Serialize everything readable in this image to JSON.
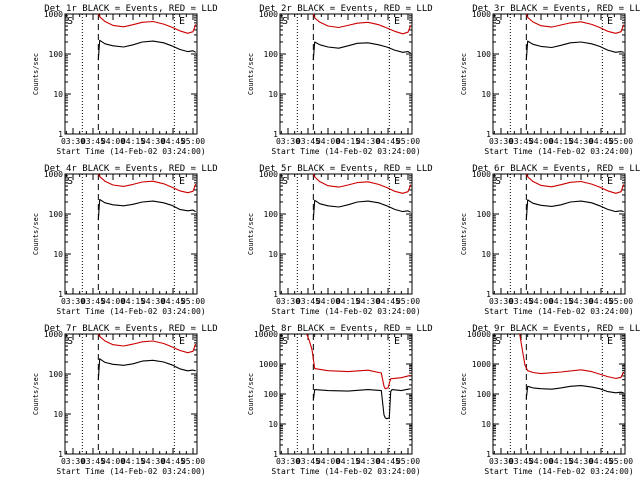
{
  "figure": {
    "time_ticks": [
      "03:30",
      "03:45",
      "04:00",
      "04:15",
      "04:30",
      "04:45",
      "05:00"
    ],
    "x_axis_label": "Start Time (14-Feb-02 03:24:00)",
    "y_axis_label": "Counts/sec",
    "marker_S": "S",
    "marker_E": "E"
  },
  "chart_data": [
    {
      "type": "line",
      "title": "Det 1r BLACK = Events, RED = LLD",
      "xlabel": "Start Time (14-Feb-02 03:24:00)",
      "ylabel": "Counts/sec",
      "yscale": "log",
      "yticks": [
        1,
        10,
        100,
        1000
      ],
      "ylim": [
        1,
        1000
      ],
      "xlim": [
        "03:24",
        "05:03"
      ],
      "x_ticks": [
        "03:30",
        "03:45",
        "04:00",
        "04:15",
        "04:30",
        "04:45",
        "05:00"
      ],
      "legend": "none",
      "grid": false,
      "dotted_lines_x": [
        "03:37",
        "04:46"
      ],
      "dashed_line_x": "03:49",
      "markers": {
        "S": "03:24",
        "E": "04:48"
      },
      "series": [
        {
          "color": "#000000",
          "x": [
            "03:49",
            "03:50",
            "03:54",
            "04:00",
            "04:08",
            "04:15",
            "04:22",
            "04:30",
            "04:38",
            "04:44",
            "04:50",
            "04:56",
            "05:00",
            "05:02"
          ],
          "y": [
            70,
            220,
            180,
            160,
            150,
            170,
            200,
            210,
            190,
            160,
            130,
            115,
            120,
            110
          ]
        },
        {
          "color": "#cc0000",
          "x": [
            "03:49",
            "03:50",
            "03:54",
            "04:00",
            "04:08",
            "04:15",
            "04:22",
            "04:30",
            "04:38",
            "04:44",
            "04:50",
            "04:56",
            "05:00",
            "05:02"
          ],
          "y": [
            1000,
            850,
            650,
            520,
            480,
            540,
            620,
            650,
            560,
            470,
            380,
            330,
            360,
            550
          ]
        }
      ]
    },
    {
      "type": "line",
      "title": "Det 2r BLACK = Events, RED = LLD",
      "xlabel": "Start Time (14-Feb-02 03:24:00)",
      "ylabel": "Counts/sec",
      "yscale": "log",
      "yticks": [
        1,
        10,
        100,
        1000
      ],
      "ylim": [
        1,
        1000
      ],
      "xlim": [
        "03:24",
        "05:03"
      ],
      "x_ticks": [
        "03:30",
        "03:45",
        "04:00",
        "04:15",
        "04:30",
        "04:45",
        "05:00"
      ],
      "legend": "none",
      "grid": false,
      "dotted_lines_x": [
        "03:37",
        "04:46"
      ],
      "dashed_line_x": "03:49",
      "markers": {
        "S": "03:24",
        "E": "04:48"
      },
      "series": [
        {
          "color": "#000000",
          "x": [
            "03:49",
            "03:50",
            "03:54",
            "04:00",
            "04:08",
            "04:15",
            "04:22",
            "04:30",
            "04:38",
            "04:44",
            "04:50",
            "04:56",
            "05:00",
            "05:02"
          ],
          "y": [
            70,
            200,
            170,
            150,
            140,
            160,
            185,
            190,
            170,
            150,
            125,
            110,
            115,
            105
          ]
        },
        {
          "color": "#cc0000",
          "x": [
            "03:49",
            "03:50",
            "03:54",
            "04:00",
            "04:08",
            "04:15",
            "04:22",
            "04:30",
            "04:38",
            "04:44",
            "04:50",
            "04:56",
            "05:00",
            "05:02"
          ],
          "y": [
            1000,
            800,
            620,
            500,
            460,
            520,
            590,
            620,
            540,
            450,
            370,
            320,
            350,
            520
          ]
        }
      ]
    },
    {
      "type": "line",
      "title": "Det 3r BLACK = Events, RED = LLD",
      "xlabel": "Start Time (14-Feb-02 03:24:00)",
      "ylabel": "Counts/sec",
      "yscale": "log",
      "yticks": [
        1,
        10,
        100,
        1000
      ],
      "ylim": [
        1,
        1000
      ],
      "xlim": [
        "03:24",
        "05:03"
      ],
      "x_ticks": [
        "03:30",
        "03:45",
        "04:00",
        "04:15",
        "04:30",
        "04:45",
        "05:00"
      ],
      "legend": "none",
      "grid": false,
      "dotted_lines_x": [
        "03:37",
        "04:46"
      ],
      "dashed_line_x": "03:49",
      "markers": {
        "S": "03:24",
        "E": "04:48"
      },
      "series": [
        {
          "color": "#000000",
          "x": [
            "03:49",
            "03:50",
            "03:54",
            "04:00",
            "04:08",
            "04:15",
            "04:22",
            "04:30",
            "04:38",
            "04:44",
            "04:50",
            "04:56",
            "05:00",
            "05:02"
          ],
          "y": [
            70,
            210,
            175,
            155,
            145,
            165,
            190,
            200,
            180,
            155,
            125,
            110,
            115,
            110
          ]
        },
        {
          "color": "#cc0000",
          "x": [
            "03:49",
            "03:50",
            "03:54",
            "04:00",
            "04:08",
            "04:15",
            "04:22",
            "04:30",
            "04:38",
            "04:44",
            "04:50",
            "04:56",
            "05:00",
            "05:02"
          ],
          "y": [
            1000,
            820,
            630,
            510,
            470,
            530,
            600,
            640,
            550,
            460,
            370,
            330,
            360,
            540
          ]
        }
      ]
    },
    {
      "type": "line",
      "title": "Det 4r BLACK = Events, RED = LLD",
      "xlabel": "Start Time (14-Feb-02 03:24:00)",
      "ylabel": "Counts/sec",
      "yscale": "log",
      "yticks": [
        1,
        10,
        100,
        1000
      ],
      "ylim": [
        1,
        1000
      ],
      "xlim": [
        "03:24",
        "05:03"
      ],
      "x_ticks": [
        "03:30",
        "03:45",
        "04:00",
        "04:15",
        "04:30",
        "04:45",
        "05:00"
      ],
      "legend": "none",
      "grid": false,
      "dotted_lines_x": [
        "03:37",
        "04:46"
      ],
      "dashed_line_x": "03:49",
      "markers": {
        "S": "03:24",
        "E": "04:48"
      },
      "series": [
        {
          "color": "#000000",
          "x": [
            "03:49",
            "03:50",
            "03:54",
            "04:00",
            "04:08",
            "04:15",
            "04:22",
            "04:30",
            "04:38",
            "04:44",
            "04:50",
            "04:56",
            "05:00",
            "05:02"
          ],
          "y": [
            70,
            230,
            190,
            170,
            160,
            175,
            200,
            210,
            190,
            165,
            130,
            120,
            125,
            115
          ]
        },
        {
          "color": "#cc0000",
          "x": [
            "03:49",
            "03:50",
            "03:54",
            "04:00",
            "04:08",
            "04:15",
            "04:22",
            "04:30",
            "04:38",
            "04:44",
            "04:50",
            "04:56",
            "05:00",
            "05:02"
          ],
          "y": [
            1000,
            860,
            660,
            530,
            490,
            550,
            630,
            660,
            570,
            470,
            380,
            340,
            370,
            560
          ]
        }
      ]
    },
    {
      "type": "line",
      "title": "Det 5r BLACK = Events, RED = LLD",
      "xlabel": "Start Time (14-Feb-02 03:24:00)",
      "ylabel": "Counts/sec",
      "yscale": "log",
      "yticks": [
        1,
        10,
        100,
        1000
      ],
      "ylim": [
        1,
        1000
      ],
      "xlim": [
        "03:24",
        "05:03"
      ],
      "x_ticks": [
        "03:30",
        "03:45",
        "04:00",
        "04:15",
        "04:30",
        "04:45",
        "05:00"
      ],
      "legend": "none",
      "grid": false,
      "dotted_lines_x": [
        "03:37",
        "04:46"
      ],
      "dashed_line_x": "03:49",
      "markers": {
        "S": "03:24",
        "E": "04:48"
      },
      "series": [
        {
          "color": "#000000",
          "x": [
            "03:49",
            "03:50",
            "03:54",
            "04:00",
            "04:08",
            "04:15",
            "04:22",
            "04:30",
            "04:38",
            "04:44",
            "04:50",
            "04:56",
            "05:00",
            "05:02"
          ],
          "y": [
            70,
            220,
            180,
            160,
            150,
            170,
            200,
            210,
            190,
            160,
            130,
            115,
            120,
            110
          ]
        },
        {
          "color": "#cc0000",
          "x": [
            "03:49",
            "03:50",
            "03:54",
            "04:00",
            "04:08",
            "04:15",
            "04:22",
            "04:30",
            "04:38",
            "04:44",
            "04:50",
            "04:56",
            "05:00",
            "05:02"
          ],
          "y": [
            1000,
            840,
            640,
            510,
            470,
            530,
            610,
            640,
            550,
            460,
            370,
            330,
            360,
            540
          ]
        }
      ]
    },
    {
      "type": "line",
      "title": "Det 6r BLACK = Events, RED = LLD",
      "xlabel": "Start Time (14-Feb-02 03:24:00)",
      "ylabel": "Counts/sec",
      "yscale": "log",
      "yticks": [
        1,
        10,
        100,
        1000
      ],
      "ylim": [
        1,
        1000
      ],
      "xlim": [
        "03:24",
        "05:03"
      ],
      "x_ticks": [
        "03:30",
        "03:45",
        "04:00",
        "04:15",
        "04:30",
        "04:45",
        "05:00"
      ],
      "legend": "none",
      "grid": false,
      "dotted_lines_x": [
        "03:37",
        "04:46"
      ],
      "dashed_line_x": "03:49",
      "markers": {
        "S": "03:24",
        "E": "04:48"
      },
      "series": [
        {
          "color": "#000000",
          "x": [
            "03:49",
            "03:50",
            "03:54",
            "04:00",
            "04:08",
            "04:15",
            "04:22",
            "04:30",
            "04:38",
            "04:44",
            "04:50",
            "04:56",
            "05:00",
            "05:02"
          ],
          "y": [
            70,
            225,
            185,
            165,
            155,
            170,
            200,
            210,
            190,
            160,
            130,
            115,
            120,
            115
          ]
        },
        {
          "color": "#cc0000",
          "x": [
            "03:49",
            "03:50",
            "03:54",
            "04:00",
            "04:08",
            "04:15",
            "04:22",
            "04:30",
            "04:38",
            "04:44",
            "04:50",
            "04:56",
            "05:00",
            "05:02"
          ],
          "y": [
            1000,
            850,
            650,
            520,
            480,
            540,
            620,
            650,
            560,
            470,
            380,
            330,
            360,
            550
          ]
        }
      ]
    },
    {
      "type": "line",
      "title": "Det 7r BLACK = Events, RED = LLD",
      "xlabel": "Start Time (14-Feb-02 03:24:00)",
      "ylabel": "Counts/sec",
      "yscale": "log",
      "yticks": [
        1,
        10,
        100,
        1000
      ],
      "ylim": [
        1,
        1000
      ],
      "xlim": [
        "03:24",
        "05:03"
      ],
      "x_ticks": [
        "03:30",
        "03:45",
        "04:00",
        "04:15",
        "04:30",
        "04:45",
        "05:00"
      ],
      "legend": "none",
      "grid": false,
      "dotted_lines_x": [
        "03:37",
        "04:46"
      ],
      "dashed_line_x": "03:49",
      "markers": {
        "S": "03:24",
        "E": "04:48"
      },
      "series": [
        {
          "color": "#000000",
          "x": [
            "03:49",
            "03:50",
            "03:54",
            "04:00",
            "04:08",
            "04:15",
            "04:22",
            "04:30",
            "04:38",
            "04:44",
            "04:50",
            "04:56",
            "05:00",
            "05:02"
          ],
          "y": [
            70,
            240,
            195,
            175,
            165,
            180,
            210,
            220,
            200,
            170,
            135,
            120,
            125,
            120
          ]
        },
        {
          "color": "#cc0000",
          "x": [
            "03:49",
            "03:50",
            "03:54",
            "04:00",
            "04:08",
            "04:15",
            "04:22",
            "04:30",
            "04:38",
            "04:44",
            "04:50",
            "04:56",
            "05:00",
            "05:02"
          ],
          "y": [
            1000,
            870,
            670,
            540,
            500,
            560,
            640,
            670,
            580,
            480,
            390,
            340,
            370,
            570
          ]
        }
      ]
    },
    {
      "type": "line",
      "title": "Det 8r BLACK = Events, RED = LLD",
      "xlabel": "Start Time (14-Feb-02 03:24:00)",
      "ylabel": "Counts/sec",
      "yscale": "log",
      "yticks": [
        1,
        10,
        100,
        1000,
        10000
      ],
      "ylim": [
        1,
        10000
      ],
      "xlim": [
        "03:24",
        "05:03"
      ],
      "x_ticks": [
        "03:30",
        "03:45",
        "04:00",
        "04:15",
        "04:30",
        "04:45",
        "05:00"
      ],
      "legend": "none",
      "grid": false,
      "dotted_lines_x": [
        "03:37",
        "04:46"
      ],
      "dashed_line_x": "03:49",
      "markers": {
        "S": "03:24",
        "E": "04:48"
      },
      "series": [
        {
          "color": "#000000",
          "x": [
            "03:49",
            "03:50",
            "04:00",
            "04:15",
            "04:30",
            "04:40",
            "04:42",
            "04:43",
            "04:44",
            "04:46",
            "04:47",
            "04:48",
            "04:55",
            "05:02"
          ],
          "y": [
            60,
            140,
            130,
            125,
            140,
            130,
            20,
            16,
            15,
            16,
            120,
            140,
            130,
            150
          ]
        },
        {
          "color": "#cc0000",
          "x": [
            "03:44",
            "03:46",
            "03:48",
            "03:50",
            "04:00",
            "04:15",
            "04:30",
            "04:40",
            "04:42",
            "04:43",
            "04:45",
            "04:47",
            "04:55",
            "05:02"
          ],
          "y": [
            10000,
            6000,
            3000,
            700,
            600,
            560,
            620,
            500,
            180,
            150,
            160,
            320,
            350,
            420
          ]
        }
      ]
    },
    {
      "type": "line",
      "title": "Det 9r BLACK = Events, RED = LLD",
      "xlabel": "Start Time (14-Feb-02 03:24:00)",
      "ylabel": "Counts/sec",
      "yscale": "log",
      "yticks": [
        1,
        10,
        100,
        1000,
        10000
      ],
      "ylim": [
        1,
        10000
      ],
      "xlim": [
        "03:24",
        "05:03"
      ],
      "x_ticks": [
        "03:30",
        "03:45",
        "04:00",
        "04:15",
        "04:30",
        "04:45",
        "05:00"
      ],
      "legend": "none",
      "grid": false,
      "dotted_lines_x": [
        "03:37",
        "04:46"
      ],
      "dashed_line_x": "03:49",
      "markers": {
        "S": "03:24",
        "E": "04:48"
      },
      "series": [
        {
          "color": "#000000",
          "x": [
            "03:49",
            "03:50",
            "03:54",
            "04:00",
            "04:08",
            "04:15",
            "04:22",
            "04:30",
            "04:38",
            "04:44",
            "04:50",
            "04:56",
            "05:00",
            "05:02"
          ],
          "y": [
            70,
            180,
            160,
            150,
            145,
            160,
            180,
            190,
            170,
            150,
            120,
            110,
            115,
            110
          ]
        },
        {
          "color": "#cc0000",
          "x": [
            "03:44",
            "03:46",
            "03:48",
            "03:50",
            "03:54",
            "04:00",
            "04:15",
            "04:30",
            "04:38",
            "04:44",
            "04:50",
            "04:56",
            "05:00",
            "05:02"
          ],
          "y": [
            10000,
            3000,
            900,
            600,
            520,
            480,
            540,
            640,
            560,
            460,
            380,
            330,
            360,
            540
          ]
        }
      ]
    }
  ]
}
